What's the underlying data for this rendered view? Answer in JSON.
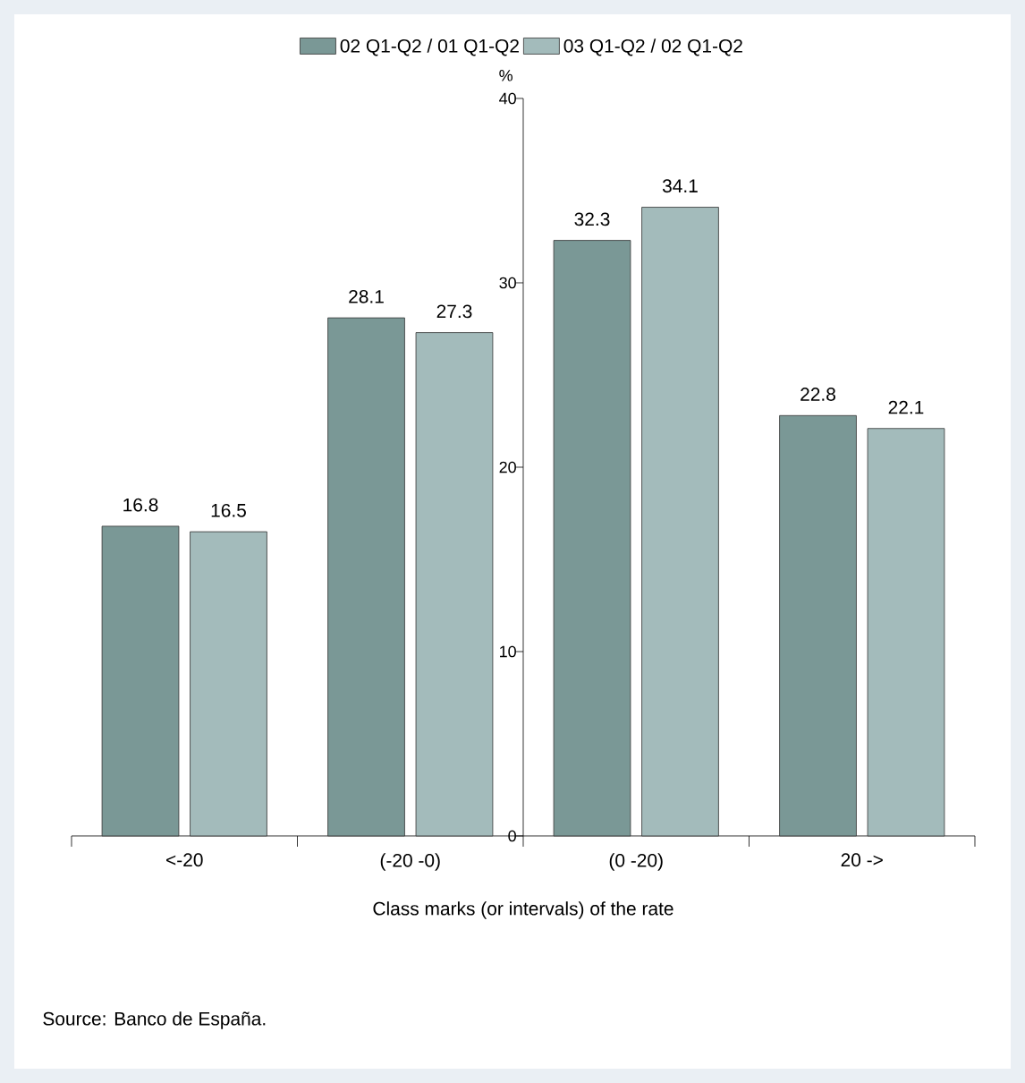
{
  "chart_data": {
    "type": "bar",
    "categories": [
      "<-20",
      "(-20 -0)",
      "(0 -20)",
      "20 ->"
    ],
    "series": [
      {
        "name": "02 Q1-Q2 / 01 Q1-Q2",
        "color": "#7a9896",
        "values": [
          16.8,
          28.1,
          32.3,
          22.8
        ]
      },
      {
        "name": "03 Q1-Q2 / 02 Q1-Q2",
        "color": "#a3bbbb",
        "values": [
          16.5,
          27.3,
          34.1,
          22.1
        ]
      }
    ],
    "ylim": [
      0,
      40
    ],
    "yticks": [
      0,
      10,
      20,
      30,
      40
    ],
    "ylabel": "%",
    "xlabel": "Class marks (or intervals) of the rate",
    "annotations": [
      "Source: Banco de España."
    ],
    "legend": "top",
    "data_labels": true
  }
}
